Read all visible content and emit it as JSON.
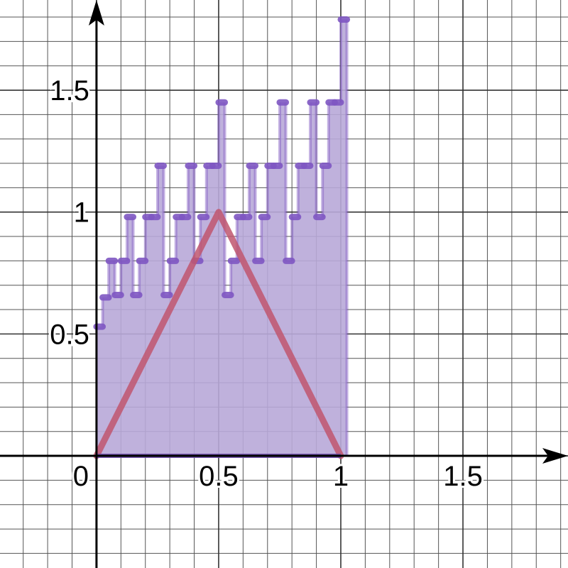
{
  "chart_data": {
    "type": "area",
    "title": "",
    "xlabel": "",
    "ylabel": "",
    "xlim": [
      -0.395,
      1.93
    ],
    "ylim": [
      -0.46,
      1.87
    ],
    "grid": true,
    "x_ticks": [
      {
        "value": 0,
        "label": "0"
      },
      {
        "value": 0.5,
        "label": "0.5"
      },
      {
        "value": 1,
        "label": "1"
      },
      {
        "value": 1.5,
        "label": "1.5"
      }
    ],
    "y_ticks": [
      {
        "value": 0.5,
        "label": "0.5"
      },
      {
        "value": 1,
        "label": "1"
      },
      {
        "value": 1.5,
        "label": "1.5"
      }
    ],
    "series": [
      {
        "type": "step-histogram",
        "color": "#7e57c2",
        "fill": "#b8a8d8",
        "bin_width": 0.025,
        "x_start": 0,
        "values": [
          0.53,
          0.65,
          0.8,
          0.66,
          0.8,
          0.98,
          0.66,
          0.8,
          0.98,
          0.98,
          1.19,
          0.66,
          0.8,
          0.98,
          0.98,
          1.19,
          0.8,
          0.98,
          1.19,
          1.19,
          1.45,
          0.66,
          0.8,
          0.98,
          0.98,
          1.19,
          0.8,
          0.98,
          1.19,
          1.19,
          1.45,
          0.8,
          0.98,
          1.19,
          1.19,
          1.45,
          0.98,
          1.19,
          1.45,
          1.45,
          1.79
        ]
      },
      {
        "type": "line",
        "color": "#c0566e",
        "x": [
          0,
          0.5,
          1
        ],
        "y": [
          0,
          1,
          0
        ]
      }
    ]
  }
}
